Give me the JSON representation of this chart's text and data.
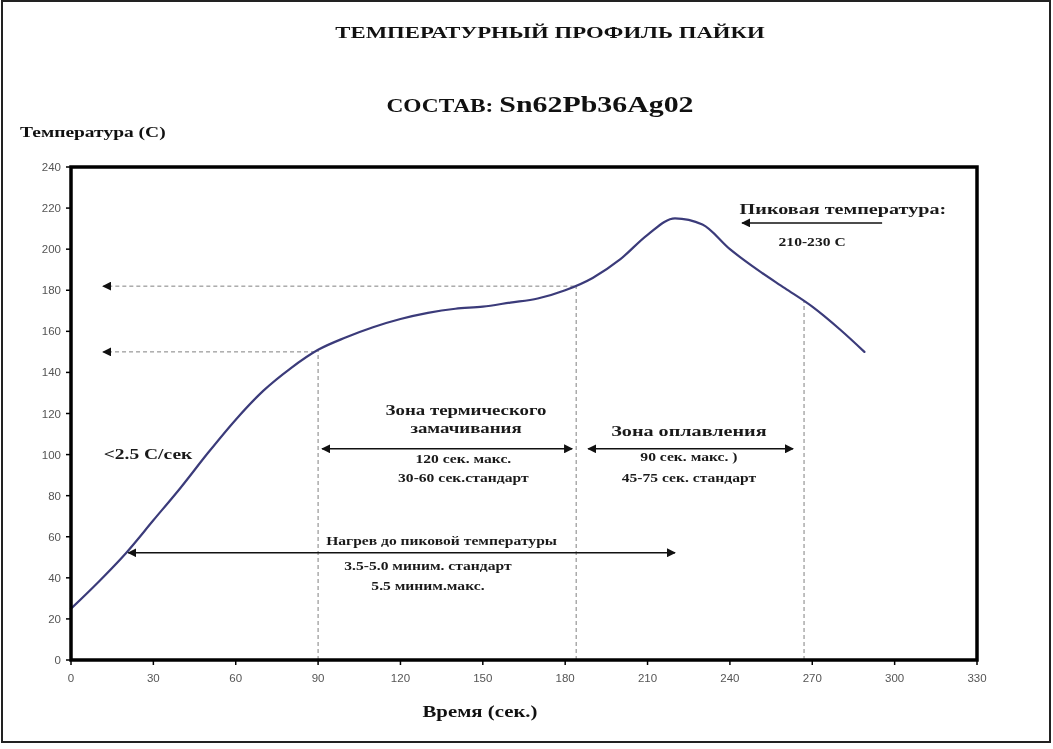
{
  "chart_data": {
    "type": "line",
    "title": "ТЕМПЕРАТУРНЫЙ ПРОФИЛЬ ПАЙКИ",
    "subtitle": "СОСТАВ: Sn62Pb36Ag02",
    "xlabel": "Время (сек.)",
    "ylabel": "Температура (С)",
    "x": [
      0,
      10,
      20,
      30,
      40,
      50,
      60,
      70,
      80,
      90,
      100,
      110,
      120,
      130,
      140,
      150,
      160,
      170,
      180,
      190,
      200,
      210,
      220,
      230,
      240,
      250,
      260,
      270,
      280,
      289
    ],
    "series": [
      {
        "color": "#3b3b7a",
        "values": [
          25,
          38,
          52,
          68,
          84,
          101,
          117,
          131,
          142,
          151,
          157,
          162,
          166,
          169,
          171,
          172,
          174,
          176,
          180,
          186,
          195,
          207,
          215,
          212,
          200,
          190,
          181,
          172,
          161,
          150
        ]
      }
    ],
    "xlim": [
      0,
      330
    ],
    "ylim": [
      0,
      240
    ],
    "xticks": [
      0,
      30,
      60,
      90,
      120,
      150,
      180,
      210,
      240,
      270,
      300,
      330
    ],
    "yticks": [
      0,
      20,
      40,
      60,
      80,
      100,
      120,
      140,
      160,
      180,
      200,
      220,
      240
    ],
    "ref_lines": [
      {
        "axis": "x",
        "value": 90,
        "color": "#808080",
        "line_style": "dashed"
      },
      {
        "axis": "x",
        "value": 184,
        "color": "#808080",
        "line_style": "dashed"
      },
      {
        "axis": "x",
        "value": 267,
        "color": "#808080",
        "line_style": "dashed"
      },
      {
        "axis": "y",
        "value": 150,
        "color": "#808080",
        "line_style": "dashed"
      },
      {
        "axis": "y",
        "value": 182,
        "color": "#808080",
        "line_style": "dashed"
      }
    ],
    "annotations": [
      "<2.5 С/сек",
      "Зона термического\nзамачивания",
      "120 сек. макс.\n30-60 сек.стандарт",
      "Зона оплавления",
      "90 сек. макс. )\n45-75 сек. стандарт",
      "Нагрев до пиковой температуры",
      "3.5-5.0 миним. стандарт\n5.5 миним.макс.",
      "Пиковая температура:",
      "210-230 С"
    ]
  }
}
